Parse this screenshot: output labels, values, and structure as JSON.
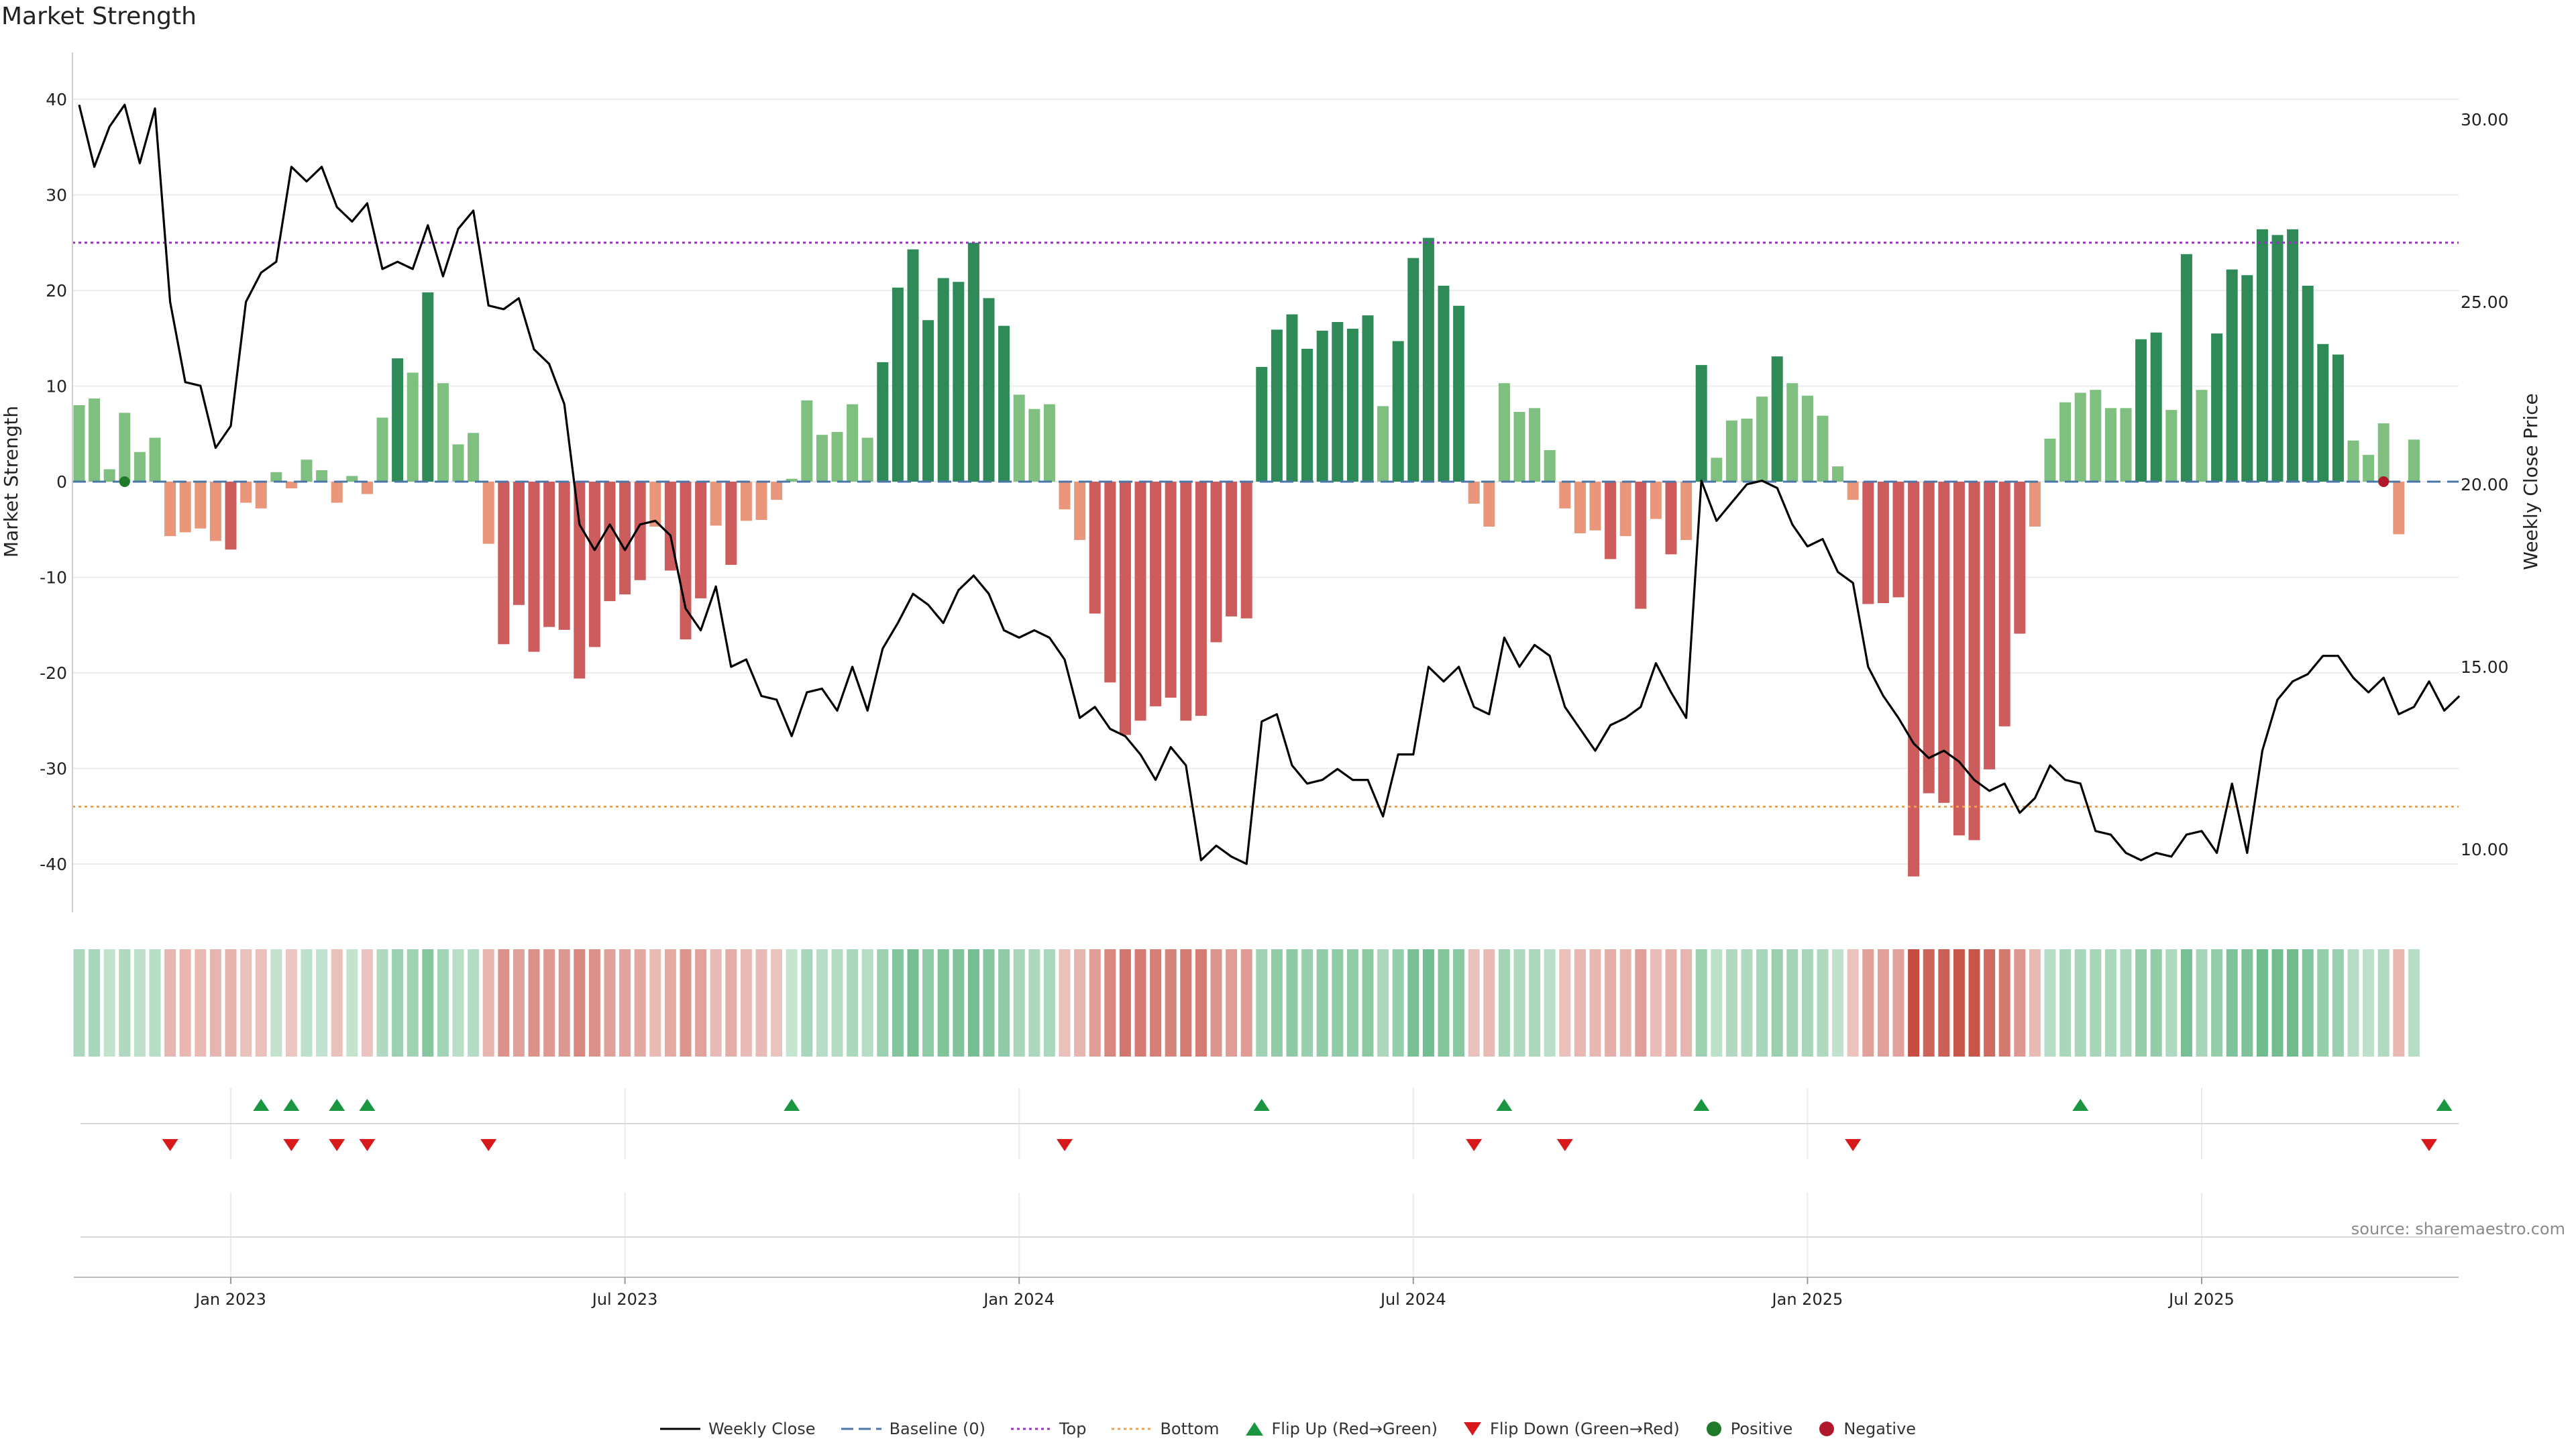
{
  "chart_data": {
    "type": "bar+line",
    "title": "Market Strength",
    "ylabel_left": "Market Strength",
    "ylabel_right": "Weekly Close Price",
    "ylim_left": [
      -45,
      45
    ],
    "ylim_right": [
      8.4,
      31.4
    ],
    "yticks_left": [
      40,
      30,
      20,
      10,
      0,
      -10,
      -20,
      -30,
      -40
    ],
    "yticks_right": [
      "30.00",
      "25.00",
      "20.00",
      "15.00",
      "10.00"
    ],
    "top_level": 25,
    "bottom_level": -34,
    "x_ticks": [
      {
        "label": "Jan 2023",
        "week": 10
      },
      {
        "label": "Jul 2023",
        "week": 36
      },
      {
        "label": "Jan 2024",
        "week": 62
      },
      {
        "label": "Jul 2024",
        "week": 88
      },
      {
        "label": "Jan 2025",
        "week": 114
      },
      {
        "label": "Jul 2025",
        "week": 140
      }
    ],
    "strength": [
      8,
      8.7,
      1.3,
      7.2,
      3.1,
      4.6,
      -5.7,
      -5.3,
      -4.9,
      -6.2,
      -7.1,
      -2.2,
      -2.8,
      1,
      -0.7,
      2.3,
      1.2,
      -2.2,
      0.6,
      -1.3,
      6.7,
      12.9,
      11.4,
      19.8,
      10.3,
      3.9,
      5.1,
      -6.5,
      -17,
      -12.9,
      -17.8,
      -15.2,
      -15.5,
      -20.6,
      -17.3,
      -12.5,
      -11.8,
      -10.3,
      -4.7,
      -9.3,
      -16.5,
      -12.2,
      -4.6,
      -8.7,
      -4.1,
      -4,
      -1.9,
      0.3,
      8.5,
      4.9,
      5.2,
      8.1,
      4.6,
      12.5,
      20.3,
      24.3,
      16.9,
      21.3,
      20.9,
      25,
      19.2,
      16.3,
      9.1,
      7.6,
      8.1,
      -2.9,
      -6.1,
      -13.8,
      -21,
      -26.5,
      -25,
      -23.5,
      -22.6,
      -25,
      -24.5,
      -16.8,
      -14.1,
      -14.3,
      12,
      15.9,
      17.5,
      13.9,
      15.8,
      16.7,
      16,
      17.4,
      7.9,
      14.7,
      23.4,
      25.5,
      20.5,
      18.4,
      -2.3,
      -4.7,
      10.3,
      7.3,
      7.7,
      3.3,
      -2.8,
      -5.4,
      -5.1,
      -8.1,
      -5.7,
      -13.3,
      -3.9,
      -7.6,
      -6.1,
      12.2,
      2.5,
      6.4,
      6.6,
      8.9,
      13.1,
      10.3,
      9,
      6.9,
      1.6,
      -1.9,
      -12.8,
      -12.7,
      -12.1,
      -41.3,
      -32.6,
      -33.6,
      -37,
      -37.5,
      -30.1,
      -25.6,
      -15.9,
      -4.7,
      4.5,
      8.3,
      9.3,
      9.6,
      7.7,
      7.7,
      14.9,
      15.6,
      7.5,
      23.8,
      9.6,
      15.5,
      22.2,
      21.6,
      26.4,
      25.8,
      26.4,
      20.5,
      14.4,
      13.3,
      4.3,
      2.8,
      6.1,
      -5.5,
      4.4
    ],
    "weekly_close": [
      30.4,
      28.7,
      29.8,
      30.4,
      28.8,
      30.3,
      25,
      22.8,
      22.7,
      21,
      21.6,
      25,
      25.8,
      26.1,
      28.7,
      28.3,
      28.7,
      27.6,
      27.2,
      27.7,
      25.9,
      26.1,
      25.9,
      27.1,
      25.7,
      27,
      27.5,
      24.9,
      24.8,
      25.1,
      23.7,
      23.3,
      22.2,
      18.9,
      18.2,
      18.9,
      18.2,
      18.9,
      19,
      18.6,
      16.6,
      16,
      17.2,
      15,
      15.2,
      14.2,
      14.1,
      13.1,
      14.3,
      14.4,
      13.8,
      15,
      13.8,
      15.5,
      16.2,
      17,
      16.7,
      16.2,
      17.1,
      17.5,
      17,
      16,
      15.8,
      16,
      15.8,
      15.2,
      13.6,
      13.9,
      13.3,
      13.1,
      12.6,
      11.9,
      12.8,
      12.3,
      9.7,
      10.1,
      9.8,
      9.6,
      13.5,
      13.7,
      12.3,
      11.8,
      11.9,
      12.2,
      11.9,
      11.9,
      10.9,
      12.6,
      12.6,
      15,
      14.6,
      15,
      13.9,
      13.7,
      15.8,
      15,
      15.6,
      15.3,
      13.9,
      13.3,
      12.7,
      13.4,
      13.6,
      13.9,
      15.1,
      14.3,
      13.6,
      20.1,
      19,
      19.5,
      20,
      20.1,
      19.9,
      18.9,
      18.3,
      18.5,
      17.6,
      17.3,
      15,
      14.2,
      13.6,
      12.9,
      12.5,
      12.7,
      12.4,
      11.9,
      11.6,
      11.8,
      11,
      11.4,
      12.3,
      11.9,
      11.8,
      10.5,
      10.4,
      9.9,
      9.7,
      9.9,
      9.8,
      10.4,
      10.5,
      9.9,
      11.8,
      9.9,
      12.7,
      14.1,
      14.6,
      14.8,
      15.3,
      15.3,
      14.7,
      14.3,
      14.7,
      13.7,
      13.9,
      14.6,
      13.8,
      14.2
    ],
    "marker_positive_week": 3,
    "marker_negative_week": 152,
    "flip_up_weeks": [
      12,
      14,
      17,
      19,
      47,
      78,
      94,
      107,
      132,
      156
    ],
    "flip_down_weeks": [
      6,
      14,
      17,
      19,
      27,
      65,
      92,
      98,
      117,
      155
    ],
    "legend": [
      "Weekly Close",
      "Baseline (0)",
      "Top",
      "Bottom",
      "Flip Up (Red→Green)",
      "Flip Down (Green→Red)",
      "Positive",
      "Negative"
    ]
  },
  "colors": {
    "strong_green": "#2e8b57",
    "light_green": "#7fbf7f",
    "strong_red": "#cd5c5c",
    "light_red": "#e9967a",
    "price_line": "#000000",
    "baseline": "#4a76a8",
    "top_line": "#9b30c4",
    "bottom_line": "#f0a050",
    "flip_up": "#1a9641",
    "flip_down": "#d7191c",
    "positive": "#1f7a2a",
    "negative": "#b2182b"
  },
  "source": "source: sharemaestro.com"
}
